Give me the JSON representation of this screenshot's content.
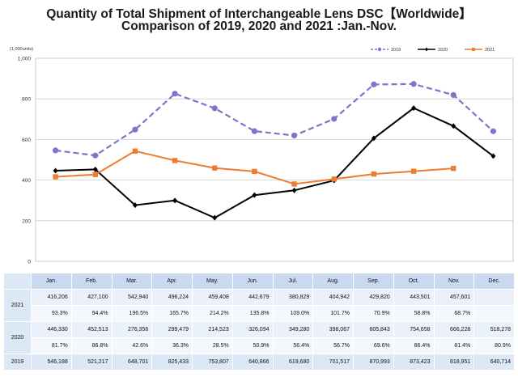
{
  "title_line1": "Quantity of Total Shipment of Interchangeable Lens DSC【Worldwide】",
  "title_line2": "Comparison of 2019, 2020 and 2021 :Jan.-Nov.",
  "chart_data": {
    "type": "line",
    "ylabel": "(1,000units)",
    "ylim": [
      0,
      1000
    ],
    "yticks": [
      0,
      200,
      400,
      600,
      800,
      1000
    ],
    "ytick_labels": [
      "0",
      "200",
      "400",
      "600",
      "800",
      "1,000"
    ],
    "grid": true,
    "legend_position": "top-right",
    "categories": [
      "Jan.",
      "Feb.",
      "Mar.",
      "Apr.",
      "May.",
      "Jun.",
      "Jul.",
      "Aug.",
      "Sep.",
      "Oct.",
      "Nov.",
      "Dec."
    ],
    "series": [
      {
        "name": "2019",
        "color": "#7b76cc",
        "dashed": true,
        "marker": "circle",
        "values": [
          546.188,
          521.217,
          648.701,
          825.433,
          753.807,
          640.866,
          619.68,
          701.517,
          870.993,
          873.423,
          818.951,
          640.714
        ]
      },
      {
        "name": "2020",
        "color": "#000000",
        "dashed": false,
        "marker": "diamond",
        "values": [
          446.33,
          452.513,
          276.356,
          299.479,
          214.523,
          326.094,
          349.28,
          398.067,
          605.843,
          754.658,
          666.228,
          518.278
        ]
      },
      {
        "name": "2021",
        "color": "#ed7d31",
        "dashed": false,
        "marker": "square",
        "values": [
          416.206,
          427.1,
          542.94,
          496.224,
          459.408,
          442.679,
          380.829,
          404.942,
          429.82,
          443.501,
          457.601,
          null
        ]
      }
    ]
  },
  "table": {
    "months": [
      "Jan.",
      "Feb.",
      "Mar.",
      "Apr.",
      "May.",
      "Jun.",
      "Jul.",
      "Aug.",
      "Sep.",
      "Oct.",
      "Nov.",
      "Dec."
    ],
    "rows": [
      {
        "label": "2021",
        "units": [
          "416,206",
          "427,100",
          "542,940",
          "496,224",
          "459,408",
          "442,679",
          "380,829",
          "404,942",
          "429,820",
          "443,501",
          "457,601",
          ""
        ],
        "pct": [
          "93.3%",
          "94.4%",
          "196.5%",
          "165.7%",
          "214.2%",
          "135.8%",
          "109.0%",
          "101.7%",
          "70.9%",
          "58.8%",
          "68.7%",
          ""
        ]
      },
      {
        "label": "2020",
        "units": [
          "446,330",
          "452,513",
          "276,356",
          "299,479",
          "214,523",
          "326,094",
          "349,280",
          "398,067",
          "605,843",
          "754,658",
          "666,228",
          "518,278"
        ],
        "pct": [
          "81.7%",
          "86.8%",
          "42.6%",
          "36.3%",
          "28.5%",
          "50.9%",
          "56.4%",
          "56.7%",
          "69.6%",
          "86.4%",
          "81.4%",
          "80.9%"
        ]
      },
      {
        "label": "2019",
        "units": [
          "546,188",
          "521,217",
          "648,701",
          "825,433",
          "753,807",
          "640,866",
          "619,680",
          "701,517",
          "870,993",
          "873,423",
          "818,951",
          "640,714"
        ]
      }
    ]
  }
}
